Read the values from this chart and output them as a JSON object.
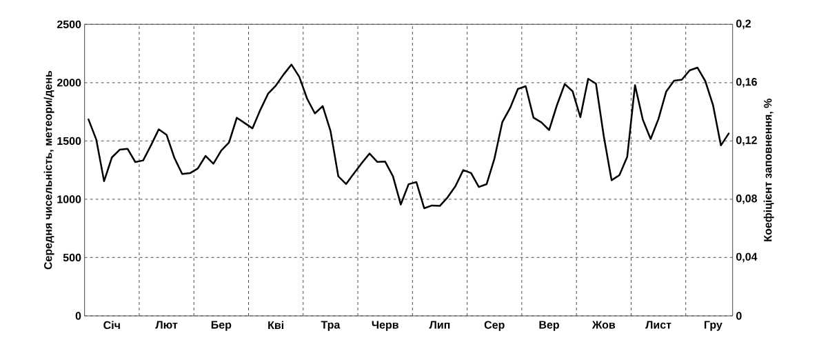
{
  "chart_data": {
    "type": "line",
    "ylabel": "Середня чисельність, метеори/день",
    "y2label": "Коефіцієнт заповнення, %",
    "categories": [
      null,
      null,
      null,
      "Січ",
      null,
      null,
      null,
      null,
      null,
      null,
      "Лют",
      null,
      null,
      null,
      null,
      null,
      null,
      "Бер",
      null,
      null,
      null,
      null,
      null,
      null,
      "Кві",
      null,
      null,
      null,
      null,
      null,
      null,
      "Тра",
      null,
      null,
      null,
      null,
      null,
      null,
      "Черв",
      null,
      null,
      null,
      null,
      null,
      null,
      "Лип",
      null,
      null,
      null,
      null,
      null,
      null,
      "Сер",
      null,
      null,
      null,
      null,
      null,
      null,
      "Вер",
      null,
      null,
      null,
      null,
      null,
      null,
      "Жов",
      null,
      null,
      null,
      null,
      null,
      null,
      "Лист",
      null,
      null,
      null,
      null,
      null,
      null,
      "Гру",
      null,
      null
    ],
    "series": [
      {
        "color": "#000000",
        "values": [
          1685,
          1512,
          1155,
          1359,
          1425,
          1433,
          1319,
          1333,
          1462,
          1600,
          1553,
          1356,
          1217,
          1224,
          1264,
          1372,
          1305,
          1417,
          1487,
          1699,
          1654,
          1608,
          1765,
          1905,
          1975,
          2071,
          2155,
          2050,
          1863,
          1736,
          1799,
          1586,
          1197,
          1131,
          1222,
          1310,
          1392,
          1320,
          1323,
          1197,
          955,
          1129,
          1147,
          923,
          947,
          943,
          1017,
          1112,
          1250,
          1225,
          1105,
          1130,
          1350,
          1661,
          1782,
          1946,
          1970,
          1700,
          1660,
          1594,
          1807,
          1988,
          1927,
          1704,
          2033,
          1992,
          1541,
          1163,
          1207,
          1363,
          1978,
          1683,
          1517,
          1688,
          1924,
          2017,
          2026,
          2106,
          2129,
          2014,
          1806,
          1462,
          1564
        ]
      }
    ],
    "ylim": [
      0,
      2500
    ],
    "yticks": [
      0,
      500,
      1000,
      1500,
      2000,
      2500
    ],
    "y2lim": [
      0,
      0.2
    ],
    "y2ticks": [
      0,
      {
        "value": 0.04,
        "label": "0,04"
      },
      {
        "value": 0.08,
        "label": "0,08"
      },
      {
        "value": 0.12,
        "label": "0,12"
      },
      {
        "value": 0.16,
        "label": "0,16"
      },
      {
        "value": 0.2,
        "label": "0,2"
      }
    ],
    "grid": true
  }
}
